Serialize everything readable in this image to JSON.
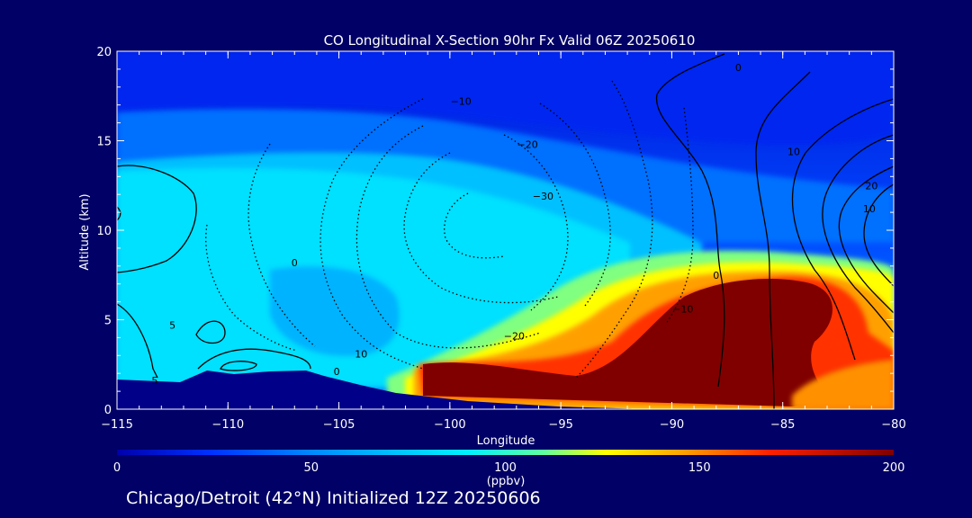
{
  "chart_data": {
    "type": "heatmap",
    "title": "CO Longitudinal X-Section 90hr  Fx Valid 06Z 20250610",
    "xlabel": "Longitude",
    "ylabel": "Altitude (km)",
    "xlim": [
      -115,
      -80
    ],
    "ylim": [
      0,
      20
    ],
    "x_ticks": [
      -115,
      -110,
      -105,
      -100,
      -95,
      -90,
      -85,
      -80
    ],
    "x_tick_labels": [
      "−115",
      "−110",
      "−105",
      "−100",
      "−95",
      "−90",
      "−85",
      "−80"
    ],
    "y_ticks": [
      0,
      5,
      10,
      15,
      20
    ],
    "y_tick_labels": [
      "0",
      "5",
      "10",
      "15",
      "20"
    ],
    "colorbar": {
      "min": 0,
      "max": 200,
      "ticks": [
        0,
        50,
        100,
        150,
        200
      ],
      "tick_labels": [
        "0",
        "50",
        "100",
        "150",
        "200"
      ],
      "unit_label": "(ppbv)",
      "colors": [
        "#0000aa",
        "#0030ff",
        "#00a0ff",
        "#00e8ff",
        "#60ff90",
        "#ffff00",
        "#ffa000",
        "#ff2000",
        "#800000"
      ]
    },
    "contour_labels": [
      {
        "x": -107,
        "y": 8.2,
        "text": "0"
      },
      {
        "x": -112.5,
        "y": 4.7,
        "text": "5"
      },
      {
        "x": -113.3,
        "y": 1.6,
        "text": "5"
      },
      {
        "x": -105.1,
        "y": 2.1,
        "text": "0"
      },
      {
        "x": -104.0,
        "y": 3.1,
        "text": "10"
      },
      {
        "x": -99.5,
        "y": 17.2,
        "text": "−10"
      },
      {
        "x": -96.5,
        "y": 14.8,
        "text": "−20"
      },
      {
        "x": -95.8,
        "y": 11.9,
        "text": "−30"
      },
      {
        "x": -97.1,
        "y": 4.1,
        "text": "−20"
      },
      {
        "x": -89.5,
        "y": 5.6,
        "text": "−10"
      },
      {
        "x": -87.0,
        "y": 19.1,
        "text": "0"
      },
      {
        "x": -88.0,
        "y": 7.5,
        "text": "0"
      },
      {
        "x": -84.5,
        "y": 14.4,
        "text": "10"
      },
      {
        "x": -81.0,
        "y": 12.5,
        "text": "20"
      },
      {
        "x": -81.1,
        "y": 11.2,
        "text": "10"
      }
    ]
  },
  "footer": "Chicago/Detroit (42°N) Initialized 12Z 20250606"
}
